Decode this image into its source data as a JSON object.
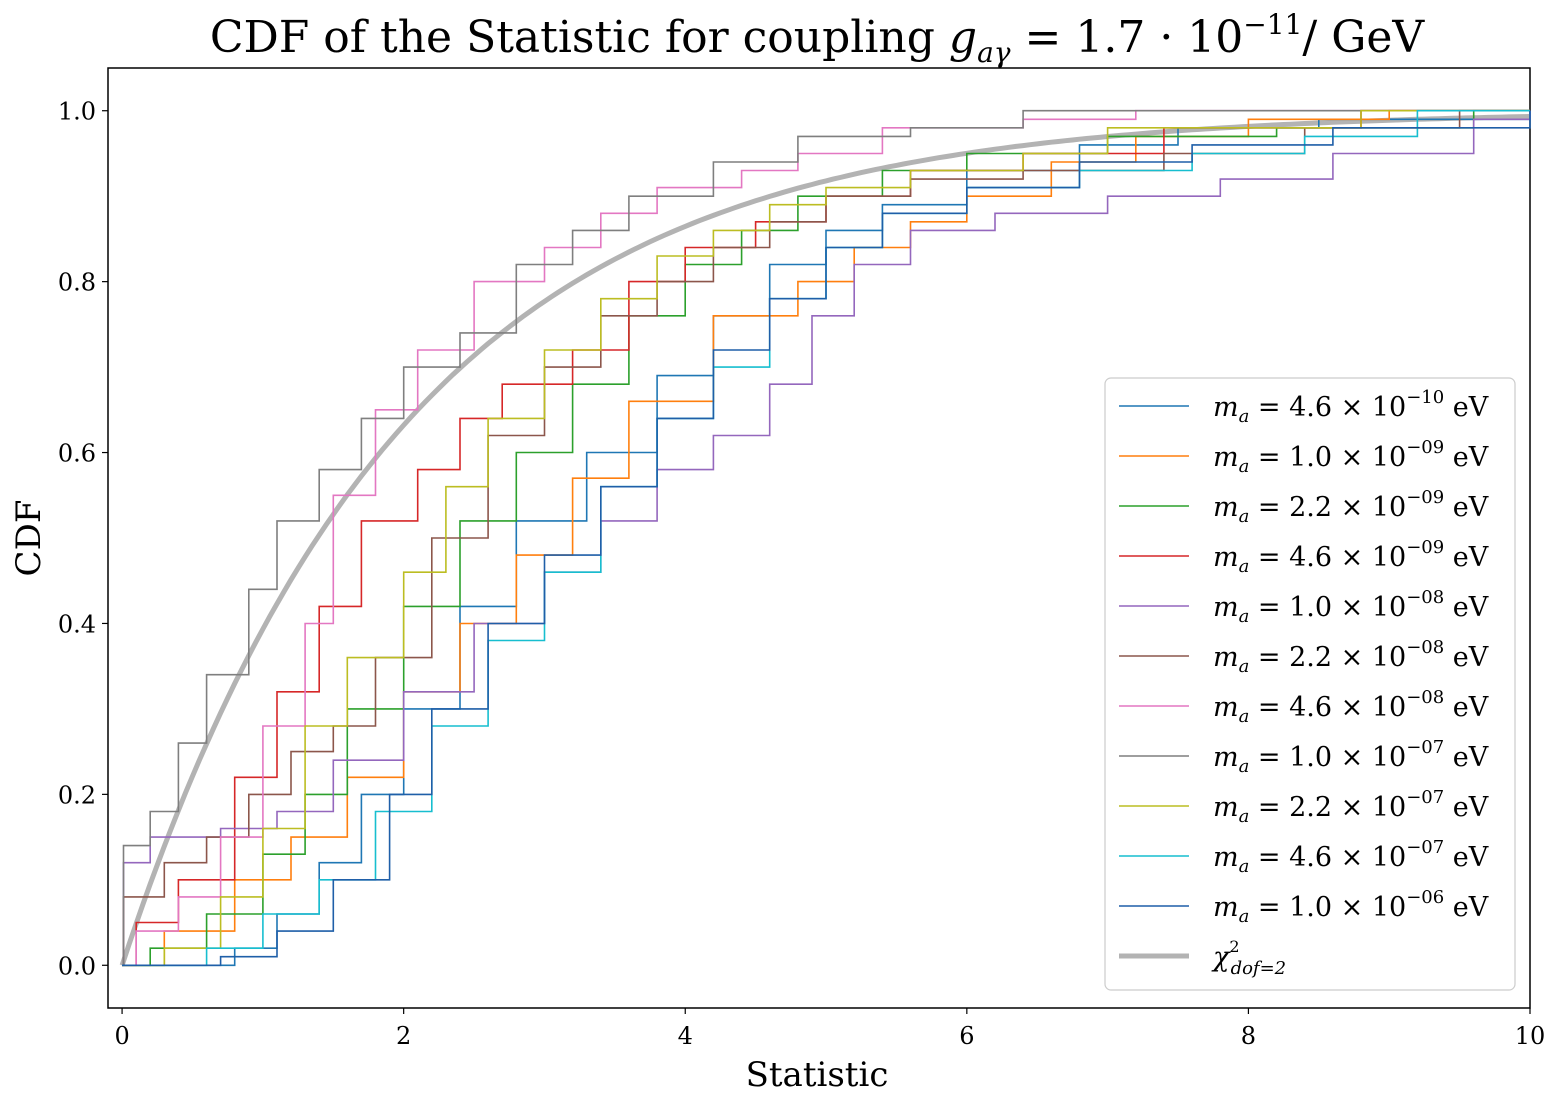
{
  "chart_data": {
    "type": "line",
    "title": {
      "prefix": "CDF of the Statistic for coupling ",
      "symbol": "g",
      "symbol_sub": "aγ",
      "eq": " = 1.7 · 10",
      "exp": "−11",
      "unit": "/ GeV"
    },
    "xlabel": "Statistic",
    "ylabel": "CDF",
    "xlim": [
      -0.1,
      10
    ],
    "ylim": [
      -0.05,
      1.05
    ],
    "xticks": [
      0,
      2,
      4,
      6,
      8,
      10
    ],
    "xtick_labels": [
      "0",
      "2",
      "4",
      "6",
      "8",
      "10"
    ],
    "yticks": [
      0.0,
      0.2,
      0.4,
      0.6,
      0.8,
      1.0
    ],
    "ytick_labels": [
      "0.0",
      "0.2",
      "0.4",
      "0.6",
      "0.8",
      "1.0"
    ],
    "legend_position": "lower-right",
    "series": [
      {
        "name": "m_a = 4.6 × 10^-10 eV",
        "mass": "4.6",
        "exp": "−10",
        "color": "#1f77b4",
        "points": [
          [
            0,
            0
          ],
          [
            0.8,
            0.02
          ],
          [
            1.1,
            0.06
          ],
          [
            1.4,
            0.12
          ],
          [
            1.7,
            0.2
          ],
          [
            2.0,
            0.3
          ],
          [
            2.4,
            0.42
          ],
          [
            2.8,
            0.52
          ],
          [
            3.3,
            0.6
          ],
          [
            3.8,
            0.69
          ],
          [
            4.2,
            0.76
          ],
          [
            4.6,
            0.82
          ],
          [
            5.0,
            0.86
          ],
          [
            5.4,
            0.89
          ],
          [
            6.0,
            0.93
          ],
          [
            6.8,
            0.96
          ],
          [
            7.5,
            0.98
          ],
          [
            8.5,
            0.99
          ],
          [
            10,
            1.0
          ]
        ]
      },
      {
        "name": "m_a = 1.0 × 10^-09 eV",
        "mass": "1.0",
        "exp": "−09",
        "color": "#ff7f0e",
        "points": [
          [
            0,
            0
          ],
          [
            0.3,
            0.04
          ],
          [
            0.8,
            0.1
          ],
          [
            1.2,
            0.15
          ],
          [
            1.6,
            0.22
          ],
          [
            2.0,
            0.32
          ],
          [
            2.4,
            0.4
          ],
          [
            2.8,
            0.48
          ],
          [
            3.2,
            0.57
          ],
          [
            3.6,
            0.66
          ],
          [
            4.2,
            0.76
          ],
          [
            4.8,
            0.8
          ],
          [
            5.2,
            0.84
          ],
          [
            5.6,
            0.87
          ],
          [
            6.0,
            0.9
          ],
          [
            6.6,
            0.94
          ],
          [
            7.2,
            0.97
          ],
          [
            8.0,
            0.99
          ],
          [
            9.0,
            1.0
          ]
        ]
      },
      {
        "name": "m_a = 2.2 × 10^-09 eV",
        "mass": "2.2",
        "exp": "−09",
        "color": "#2ca02c",
        "points": [
          [
            0,
            0
          ],
          [
            0.2,
            0.02
          ],
          [
            0.6,
            0.06
          ],
          [
            1.0,
            0.13
          ],
          [
            1.3,
            0.2
          ],
          [
            1.6,
            0.3
          ],
          [
            2.0,
            0.42
          ],
          [
            2.4,
            0.52
          ],
          [
            2.8,
            0.6
          ],
          [
            3.2,
            0.68
          ],
          [
            3.6,
            0.76
          ],
          [
            4.0,
            0.82
          ],
          [
            4.4,
            0.86
          ],
          [
            4.8,
            0.9
          ],
          [
            5.4,
            0.93
          ],
          [
            6.0,
            0.95
          ],
          [
            7.0,
            0.97
          ],
          [
            8.2,
            0.98
          ],
          [
            9.6,
            1.0
          ]
        ]
      },
      {
        "name": "m_a = 4.6 × 10^-09 eV",
        "mass": "4.6",
        "exp": "−09",
        "color": "#d62728",
        "points": [
          [
            0,
            0
          ],
          [
            0.1,
            0.05
          ],
          [
            0.4,
            0.1
          ],
          [
            0.8,
            0.22
          ],
          [
            1.1,
            0.32
          ],
          [
            1.4,
            0.42
          ],
          [
            1.7,
            0.52
          ],
          [
            2.1,
            0.58
          ],
          [
            2.4,
            0.64
          ],
          [
            2.7,
            0.68
          ],
          [
            3.2,
            0.72
          ],
          [
            3.6,
            0.8
          ],
          [
            4.0,
            0.84
          ],
          [
            4.5,
            0.87
          ],
          [
            5.0,
            0.9
          ],
          [
            5.6,
            0.93
          ],
          [
            6.4,
            0.95
          ],
          [
            7.4,
            0.98
          ],
          [
            8.8,
            1.0
          ]
        ]
      },
      {
        "name": "m_a = 1.0 × 10^-08 eV",
        "mass": "1.0",
        "exp": "−08",
        "color": "#9467bd",
        "points": [
          [
            0,
            0
          ],
          [
            0.01,
            0.12
          ],
          [
            0.2,
            0.15
          ],
          [
            0.7,
            0.16
          ],
          [
            1.1,
            0.18
          ],
          [
            1.5,
            0.24
          ],
          [
            2.0,
            0.32
          ],
          [
            2.5,
            0.4
          ],
          [
            3.0,
            0.46
          ],
          [
            3.4,
            0.52
          ],
          [
            3.8,
            0.58
          ],
          [
            4.2,
            0.62
          ],
          [
            4.6,
            0.68
          ],
          [
            4.9,
            0.76
          ],
          [
            5.2,
            0.82
          ],
          [
            5.6,
            0.86
          ],
          [
            6.2,
            0.88
          ],
          [
            7.0,
            0.9
          ],
          [
            7.8,
            0.92
          ],
          [
            8.6,
            0.95
          ],
          [
            9.6,
            0.99
          ],
          [
            10,
            1.0
          ]
        ]
      },
      {
        "name": "m_a = 2.2 × 10^-08 eV",
        "mass": "2.2",
        "exp": "−08",
        "color": "#8c564b",
        "points": [
          [
            0,
            0
          ],
          [
            0.01,
            0.08
          ],
          [
            0.3,
            0.12
          ],
          [
            0.6,
            0.15
          ],
          [
            0.9,
            0.2
          ],
          [
            1.2,
            0.25
          ],
          [
            1.5,
            0.28
          ],
          [
            1.8,
            0.36
          ],
          [
            2.2,
            0.5
          ],
          [
            2.6,
            0.62
          ],
          [
            3.0,
            0.7
          ],
          [
            3.4,
            0.76
          ],
          [
            3.8,
            0.8
          ],
          [
            4.2,
            0.84
          ],
          [
            4.6,
            0.87
          ],
          [
            5.0,
            0.9
          ],
          [
            5.6,
            0.92
          ],
          [
            6.4,
            0.93
          ],
          [
            7.4,
            0.95
          ],
          [
            8.4,
            0.98
          ],
          [
            9.5,
            1.0
          ]
        ]
      },
      {
        "name": "m_a = 4.6 × 10^-08 eV",
        "mass": "4.6",
        "exp": "−08",
        "color": "#e377c2",
        "points": [
          [
            0,
            0
          ],
          [
            0.1,
            0.04
          ],
          [
            0.4,
            0.08
          ],
          [
            0.7,
            0.15
          ],
          [
            1.0,
            0.28
          ],
          [
            1.3,
            0.4
          ],
          [
            1.5,
            0.55
          ],
          [
            1.8,
            0.65
          ],
          [
            2.1,
            0.72
          ],
          [
            2.5,
            0.8
          ],
          [
            3.0,
            0.84
          ],
          [
            3.4,
            0.88
          ],
          [
            3.8,
            0.91
          ],
          [
            4.4,
            0.93
          ],
          [
            4.8,
            0.95
          ],
          [
            5.4,
            0.98
          ],
          [
            6.4,
            0.99
          ],
          [
            7.2,
            1.0
          ]
        ]
      },
      {
        "name": "m_a = 1.0 × 10^-07 eV",
        "mass": "1.0",
        "exp": "−07",
        "color": "#7f7f7f",
        "points": [
          [
            0,
            0
          ],
          [
            0.01,
            0.14
          ],
          [
            0.2,
            0.18
          ],
          [
            0.4,
            0.26
          ],
          [
            0.6,
            0.34
          ],
          [
            0.9,
            0.44
          ],
          [
            1.1,
            0.52
          ],
          [
            1.4,
            0.58
          ],
          [
            1.7,
            0.64
          ],
          [
            2.0,
            0.7
          ],
          [
            2.4,
            0.74
          ],
          [
            2.8,
            0.82
          ],
          [
            3.2,
            0.86
          ],
          [
            3.6,
            0.9
          ],
          [
            4.2,
            0.94
          ],
          [
            4.8,
            0.97
          ],
          [
            5.6,
            0.98
          ],
          [
            6.4,
            1.0
          ]
        ]
      },
      {
        "name": "m_a = 2.2 × 10^-07 eV",
        "mass": "2.2",
        "exp": "−07",
        "color": "#bcbd22",
        "points": [
          [
            0,
            0
          ],
          [
            0.3,
            0.02
          ],
          [
            0.7,
            0.08
          ],
          [
            1.0,
            0.16
          ],
          [
            1.3,
            0.28
          ],
          [
            1.6,
            0.36
          ],
          [
            2.0,
            0.46
          ],
          [
            2.3,
            0.56
          ],
          [
            2.6,
            0.64
          ],
          [
            3.0,
            0.72
          ],
          [
            3.4,
            0.78
          ],
          [
            3.8,
            0.83
          ],
          [
            4.2,
            0.86
          ],
          [
            4.6,
            0.89
          ],
          [
            5.0,
            0.91
          ],
          [
            5.6,
            0.93
          ],
          [
            6.4,
            0.95
          ],
          [
            7.0,
            0.98
          ],
          [
            8.8,
            1.0
          ]
        ]
      },
      {
        "name": "m_a = 4.6 × 10^-07 eV",
        "mass": "4.6",
        "exp": "−07",
        "color": "#17becf",
        "points": [
          [
            0,
            0
          ],
          [
            0.6,
            0.02
          ],
          [
            1.0,
            0.06
          ],
          [
            1.4,
            0.1
          ],
          [
            1.8,
            0.18
          ],
          [
            2.2,
            0.28
          ],
          [
            2.6,
            0.38
          ],
          [
            3.0,
            0.46
          ],
          [
            3.4,
            0.56
          ],
          [
            3.8,
            0.64
          ],
          [
            4.2,
            0.7
          ],
          [
            4.6,
            0.78
          ],
          [
            5.0,
            0.84
          ],
          [
            5.4,
            0.88
          ],
          [
            6.0,
            0.91
          ],
          [
            6.8,
            0.93
          ],
          [
            7.6,
            0.95
          ],
          [
            8.4,
            0.97
          ],
          [
            9.2,
            1.0
          ]
        ]
      },
      {
        "name": "m_a = 1.0 × 10^-06 eV",
        "mass": "1.0",
        "exp": "−06",
        "color": "#1f5fa8",
        "points": [
          [
            0,
            0
          ],
          [
            0.7,
            0.01
          ],
          [
            1.1,
            0.04
          ],
          [
            1.5,
            0.1
          ],
          [
            1.9,
            0.2
          ],
          [
            2.2,
            0.3
          ],
          [
            2.6,
            0.4
          ],
          [
            3.0,
            0.48
          ],
          [
            3.4,
            0.56
          ],
          [
            3.8,
            0.64
          ],
          [
            4.2,
            0.72
          ],
          [
            4.6,
            0.78
          ],
          [
            5.0,
            0.84
          ],
          [
            5.4,
            0.88
          ],
          [
            6.0,
            0.91
          ],
          [
            6.8,
            0.94
          ],
          [
            7.6,
            0.96
          ],
          [
            8.6,
            0.98
          ],
          [
            10,
            1.0
          ]
        ]
      }
    ],
    "reference": {
      "name": "χ²_{dof=2}",
      "symbol": "χ",
      "sup": "2",
      "sub": "dof=2",
      "color": "#b3b3b3",
      "dof": 2
    }
  }
}
